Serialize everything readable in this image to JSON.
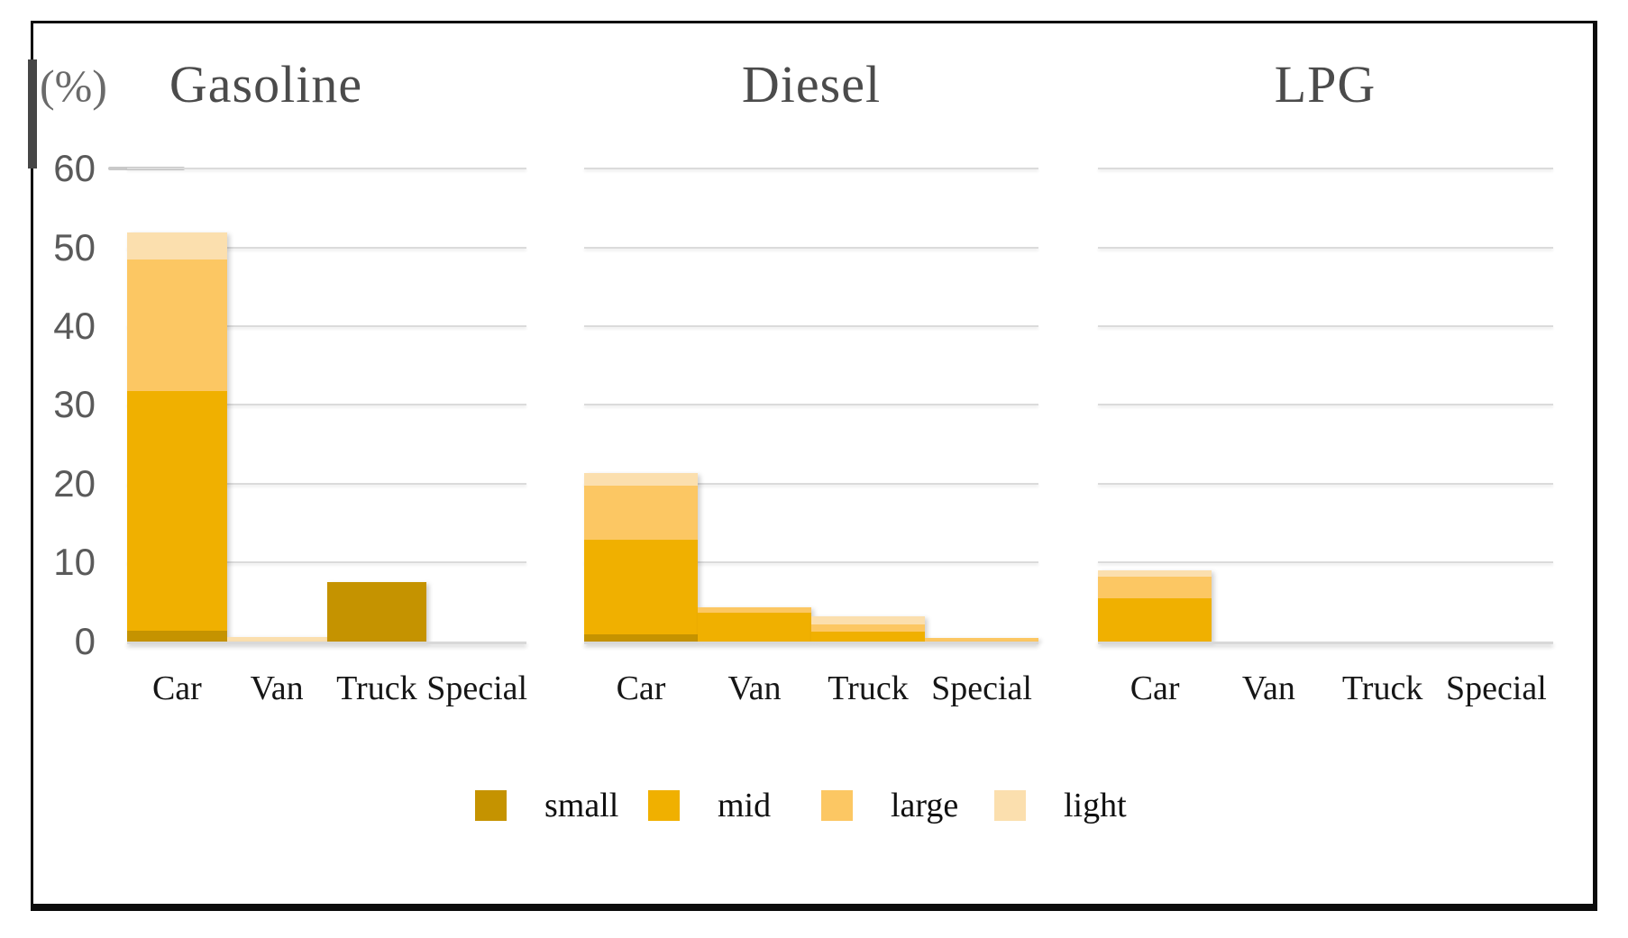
{
  "unit_label": "(%)",
  "chart_data": {
    "type": "bar",
    "stacked": true,
    "unit": "%",
    "ylim": [
      0,
      60
    ],
    "yticks": [
      60,
      50,
      40,
      30,
      20,
      10,
      0
    ],
    "grid": true,
    "legend_position": "bottom",
    "categories": [
      "Car",
      "Van",
      "Truck",
      "Special"
    ],
    "series_order": [
      "small",
      "mid",
      "large",
      "light"
    ],
    "series_colors": {
      "small": "#C59300",
      "mid": "#F0B000",
      "large": "#FCC763",
      "light": "#FBDFAE"
    },
    "panels": [
      {
        "title": "Gasoline",
        "series": [
          {
            "name": "small",
            "values": [
              1.4,
              0,
              7.6,
              0
            ]
          },
          {
            "name": "mid",
            "values": [
              30.4,
              0,
              0,
              0
            ]
          },
          {
            "name": "large",
            "values": [
              16.7,
              0,
              0,
              0
            ]
          },
          {
            "name": "light",
            "values": [
              3.5,
              0.6,
              0,
              0
            ]
          }
        ]
      },
      {
        "title": "Diesel",
        "series": [
          {
            "name": "small",
            "values": [
              0.9,
              0,
              0,
              0
            ]
          },
          {
            "name": "mid",
            "values": [
              12.0,
              3.7,
              1.3,
              0
            ]
          },
          {
            "name": "large",
            "values": [
              6.9,
              0.7,
              0.9,
              0.5
            ]
          },
          {
            "name": "light",
            "values": [
              1.6,
              0,
              1.0,
              0
            ]
          }
        ]
      },
      {
        "title": "LPG",
        "series": [
          {
            "name": "small",
            "values": [
              0,
              0,
              0,
              0
            ]
          },
          {
            "name": "mid",
            "values": [
              5.5,
              0,
              0,
              0
            ]
          },
          {
            "name": "large",
            "values": [
              2.7,
              0,
              0,
              0
            ]
          },
          {
            "name": "light",
            "values": [
              0.8,
              0,
              0,
              0
            ]
          }
        ]
      }
    ],
    "legend": [
      {
        "label": "small",
        "color": "#C59300"
      },
      {
        "label": "mid",
        "color": "#F0B000"
      },
      {
        "label": "large",
        "color": "#FCC763"
      },
      {
        "label": "light",
        "color": "#FBDFAE"
      }
    ],
    "colors": {
      "gridline": "#DBDBDB",
      "title_text": "#4B4B4B",
      "axis_text": "#5A5A5A",
      "category_text": "#161616",
      "frame_border": "#0C0C0C"
    }
  }
}
